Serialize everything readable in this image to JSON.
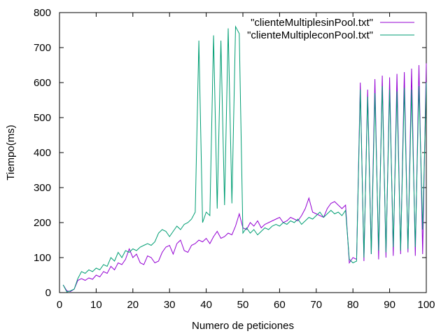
{
  "chart_data": {
    "type": "line",
    "xlabel": "Numero de peticiones",
    "ylabel": "Tiempo(ms)",
    "xlim": [
      0,
      100
    ],
    "ylim": [
      0,
      800
    ],
    "xticks": [
      0,
      10,
      20,
      30,
      40,
      50,
      60,
      70,
      80,
      90,
      100
    ],
    "yticks": [
      0,
      100,
      200,
      300,
      400,
      500,
      600,
      700,
      800
    ],
    "grid": false,
    "legend_position": "top-right",
    "series": [
      {
        "name": "\"clienteMultiplesinPool.txt\"",
        "color": "#9400d3",
        "x": [
          1,
          2,
          3,
          4,
          5,
          6,
          7,
          8,
          9,
          10,
          11,
          12,
          13,
          14,
          15,
          16,
          17,
          18,
          19,
          20,
          21,
          22,
          23,
          24,
          25,
          26,
          27,
          28,
          29,
          30,
          31,
          32,
          33,
          34,
          35,
          36,
          37,
          38,
          39,
          40,
          41,
          42,
          43,
          44,
          45,
          46,
          47,
          48,
          49,
          50,
          51,
          52,
          53,
          54,
          55,
          56,
          57,
          58,
          59,
          60,
          61,
          62,
          63,
          64,
          65,
          66,
          67,
          68,
          69,
          70,
          71,
          72,
          73,
          74,
          75,
          76,
          77,
          78,
          79,
          80,
          81,
          82,
          83,
          84,
          85,
          86,
          87,
          88,
          89,
          90,
          91,
          92,
          93,
          94,
          95,
          96,
          97,
          98,
          99,
          100
        ],
        "y": [
          22,
          5,
          3,
          10,
          35,
          40,
          35,
          42,
          38,
          50,
          45,
          60,
          55,
          75,
          65,
          85,
          80,
          95,
          125,
          100,
          110,
          85,
          80,
          105,
          100,
          85,
          90,
          115,
          130,
          135,
          110,
          140,
          150,
          120,
          115,
          135,
          140,
          150,
          145,
          155,
          140,
          160,
          175,
          155,
          160,
          170,
          165,
          190,
          225,
          185,
          180,
          200,
          190,
          205,
          185,
          195,
          200,
          205,
          210,
          215,
          200,
          205,
          215,
          210,
          205,
          220,
          240,
          270,
          230,
          225,
          220,
          215,
          240,
          255,
          260,
          250,
          240,
          250,
          85,
          100,
          95,
          600,
          90,
          580,
          110,
          610,
          95,
          620,
          100,
          615,
          105,
          625,
          110,
          630,
          115,
          640,
          105,
          650,
          110,
          655
        ]
      },
      {
        "name": "\"clienteMultipleconPool.txt\"",
        "color": "#009e73",
        "x": [
          1,
          2,
          3,
          4,
          5,
          6,
          7,
          8,
          9,
          10,
          11,
          12,
          13,
          14,
          15,
          16,
          17,
          18,
          19,
          20,
          21,
          22,
          23,
          24,
          25,
          26,
          27,
          28,
          29,
          30,
          31,
          32,
          33,
          34,
          35,
          36,
          37,
          38,
          39,
          40,
          41,
          42,
          43,
          44,
          45,
          46,
          47,
          48,
          49,
          50,
          51,
          52,
          53,
          54,
          55,
          56,
          57,
          58,
          59,
          60,
          61,
          62,
          63,
          64,
          65,
          66,
          67,
          68,
          69,
          70,
          71,
          72,
          73,
          74,
          75,
          76,
          77,
          78,
          79,
          80,
          81,
          82,
          83,
          84,
          85,
          86,
          87,
          88,
          89,
          90,
          91,
          92,
          93,
          94,
          95,
          96,
          97,
          98,
          99,
          100
        ],
        "y": [
          22,
          2,
          5,
          10,
          40,
          60,
          55,
          65,
          60,
          70,
          65,
          80,
          75,
          100,
          90,
          115,
          100,
          120,
          115,
          125,
          120,
          130,
          135,
          140,
          135,
          145,
          170,
          180,
          175,
          160,
          175,
          190,
          180,
          195,
          200,
          210,
          230,
          720,
          200,
          230,
          220,
          735,
          240,
          720,
          250,
          755,
          255,
          760,
          740,
          170,
          185,
          170,
          180,
          165,
          175,
          185,
          180,
          190,
          195,
          190,
          200,
          195,
          205,
          200,
          210,
          195,
          205,
          215,
          210,
          220,
          230,
          215,
          225,
          235,
          225,
          230,
          220,
          235,
          95,
          85,
          90,
          580,
          100,
          560,
          110,
          570,
          120,
          590,
          115,
          580,
          130,
          575,
          120,
          585,
          125,
          580,
          130,
          590,
          180,
          600
        ]
      }
    ]
  }
}
